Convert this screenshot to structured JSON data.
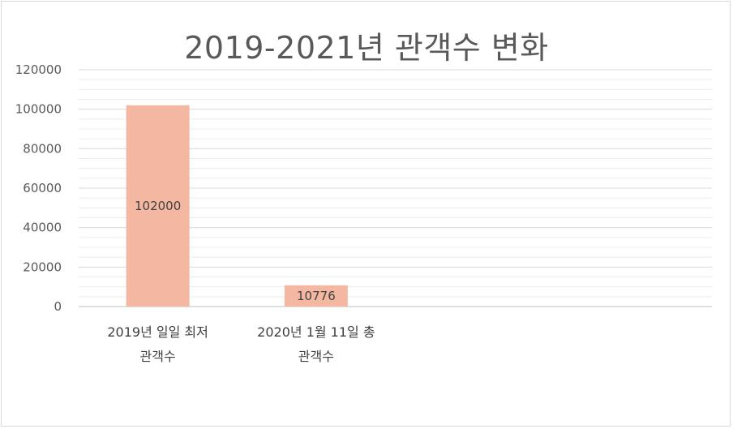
{
  "chart_data": {
    "type": "bar",
    "title": "2019-2021년 관객수 변화",
    "categories": [
      [
        "2019년 일일 최저",
        "관객수"
      ],
      [
        "2020년 1월 11일 총",
        "관객수"
      ]
    ],
    "values": [
      102000,
      10776
    ],
    "data_labels": [
      "102000",
      "10776"
    ],
    "ylim": [
      0,
      120000
    ],
    "yticks": [
      0,
      20000,
      40000,
      60000,
      80000,
      100000,
      120000
    ],
    "ytick_labels": [
      "0",
      "20000",
      "40000",
      "60000",
      "80000",
      "100000",
      "120000"
    ],
    "category_slots": 4,
    "grid": true,
    "bar_color": "#f4b8a2",
    "grid_color": "#d9d9d9",
    "xlabel": "",
    "ylabel": ""
  }
}
